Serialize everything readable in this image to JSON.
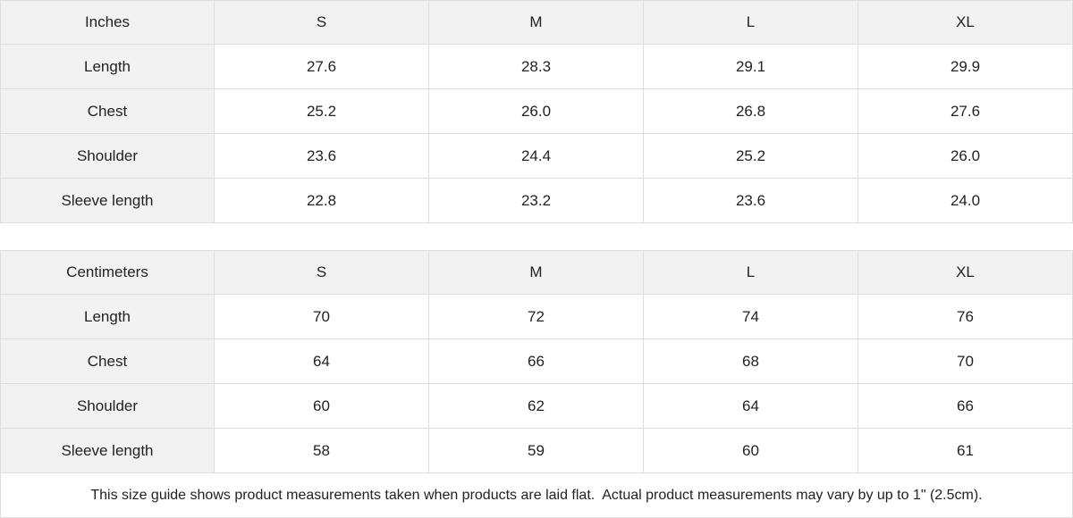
{
  "tables": [
    {
      "header": [
        "Inches",
        "S",
        "M",
        "L",
        "XL"
      ],
      "rows": [
        [
          "Length",
          "27.6",
          "28.3",
          "29.1",
          "29.9"
        ],
        [
          "Chest",
          "25.2",
          "26.0",
          "26.8",
          "27.6"
        ],
        [
          "Shoulder",
          "23.6",
          "24.4",
          "25.2",
          "26.0"
        ],
        [
          "Sleeve length",
          "22.8",
          "23.2",
          "23.6",
          "24.0"
        ]
      ]
    },
    {
      "header": [
        "Centimeters",
        "S",
        "M",
        "L",
        "XL"
      ],
      "rows": [
        [
          "Length",
          "70",
          "72",
          "74",
          "76"
        ],
        [
          "Chest",
          "64",
          "66",
          "68",
          "70"
        ],
        [
          "Shoulder",
          "60",
          "62",
          "64",
          "66"
        ],
        [
          "Sleeve length",
          "58",
          "59",
          "60",
          "61"
        ]
      ]
    }
  ],
  "note": "This size guide shows product measurements taken when products are laid flat.  Actual product measurements may vary by up to 1\" (2.5cm)."
}
